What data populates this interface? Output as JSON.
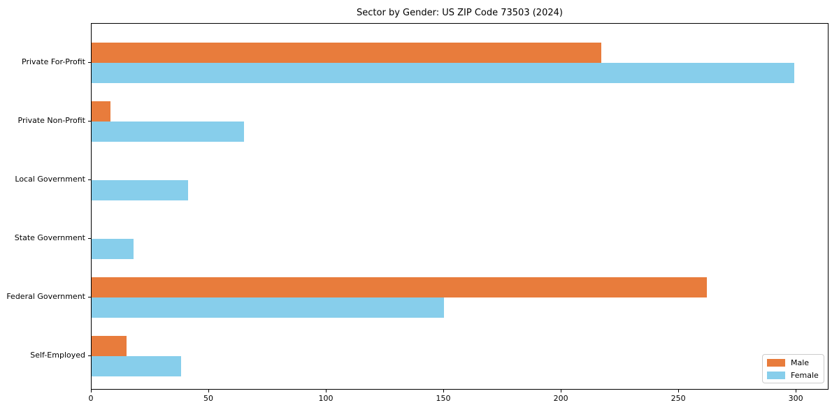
{
  "chart_data": {
    "type": "bar",
    "orientation": "horizontal",
    "title": "Sector by Gender: US ZIP Code 73503 (2024)",
    "categories": [
      "Private For-Profit",
      "Private Non-Profit",
      "Local Government",
      "State Government",
      "Federal Government",
      "Self-Employed"
    ],
    "series": [
      {
        "name": "Male",
        "color": "#e87c3c",
        "values": [
          217,
          8,
          0,
          0,
          262,
          15
        ]
      },
      {
        "name": "Female",
        "color": "#87ceeb",
        "values": [
          299,
          65,
          41,
          18,
          150,
          38
        ]
      }
    ],
    "xlabel": "",
    "ylabel": "",
    "xlim": [
      0,
      313.95
    ],
    "xticks": [
      0,
      50,
      100,
      150,
      200,
      250,
      300
    ],
    "grid": false,
    "legend_position": "lower right",
    "background_color": "#ffffff",
    "axis_color": "#000000"
  }
}
